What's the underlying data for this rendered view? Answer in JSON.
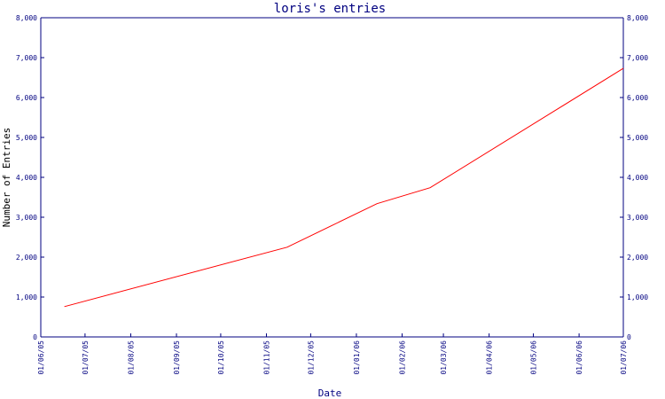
{
  "chart_data": {
    "type": "line",
    "title": "loris's entries",
    "xlabel": "Date",
    "ylabel": "Number of Entries",
    "x_ticks": [
      "01/06/05",
      "01/07/05",
      "01/08/05",
      "01/09/05",
      "01/10/05",
      "01/11/05",
      "01/12/05",
      "01/01/06",
      "01/02/06",
      "01/03/06",
      "01/04/06",
      "01/05/06",
      "01/06/06",
      "01/07/06"
    ],
    "y_ticks": [
      "0",
      "1,000",
      "2,000",
      "3,000",
      "4,000",
      "5,000",
      "6,000",
      "7,000",
      "8,000"
    ],
    "xlim": [
      "2005-06-01",
      "2006-07-01"
    ],
    "ylim": [
      0,
      8000
    ],
    "y_axes": "left and right",
    "grid": false,
    "colors": {
      "axis": "#000080",
      "line": "#ff0000",
      "background": "#ffffff"
    },
    "series": [
      {
        "x": [
          "2005-06-17",
          "2005-11-15",
          "2006-01-15",
          "2006-02-20",
          "2006-07-01"
        ],
        "y": [
          760,
          2250,
          3340,
          3740,
          6730
        ]
      }
    ]
  }
}
